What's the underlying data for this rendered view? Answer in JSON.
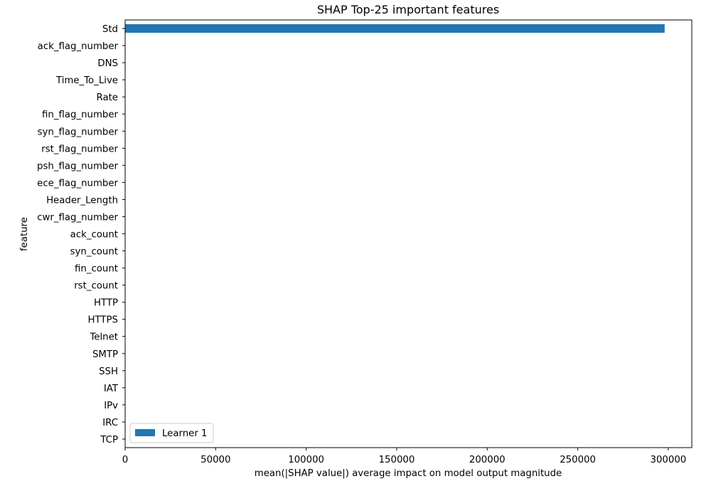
{
  "chart_data": {
    "type": "bar",
    "orientation": "horizontal",
    "title": "SHAP Top-25 important features",
    "xlabel": "mean(|SHAP value|) average impact on model output magnitude",
    "ylabel": "feature",
    "categories": [
      "Std",
      "ack_flag_number",
      "DNS",
      "Time_To_Live",
      "Rate",
      "fin_flag_number",
      "syn_flag_number",
      "rst_flag_number",
      "psh_flag_number",
      "ece_flag_number",
      "Header_Length",
      "cwr_flag_number",
      "ack_count",
      "syn_count",
      "fin_count",
      "rst_count",
      "HTTP",
      "HTTPS",
      "Telnet",
      "SMTP",
      "SSH",
      "IAT",
      "IPv",
      "IRC",
      "TCP"
    ],
    "series": [
      {
        "name": "Learner 1",
        "color": "#1f77b4",
        "values": [
          298000,
          0,
          0,
          0,
          0,
          0,
          0,
          0,
          0,
          0,
          0,
          0,
          0,
          0,
          0,
          0,
          0,
          0,
          0,
          0,
          0,
          0,
          0,
          0,
          0
        ]
      }
    ],
    "xlim": [
      0,
      313000
    ],
    "xticks": [
      0,
      50000,
      100000,
      150000,
      200000,
      250000,
      300000
    ],
    "xtick_labels": [
      "0",
      "50000",
      "100000",
      "150000",
      "200000",
      "250000",
      "300000"
    ],
    "grid": false,
    "legend_position": "lower-left"
  }
}
